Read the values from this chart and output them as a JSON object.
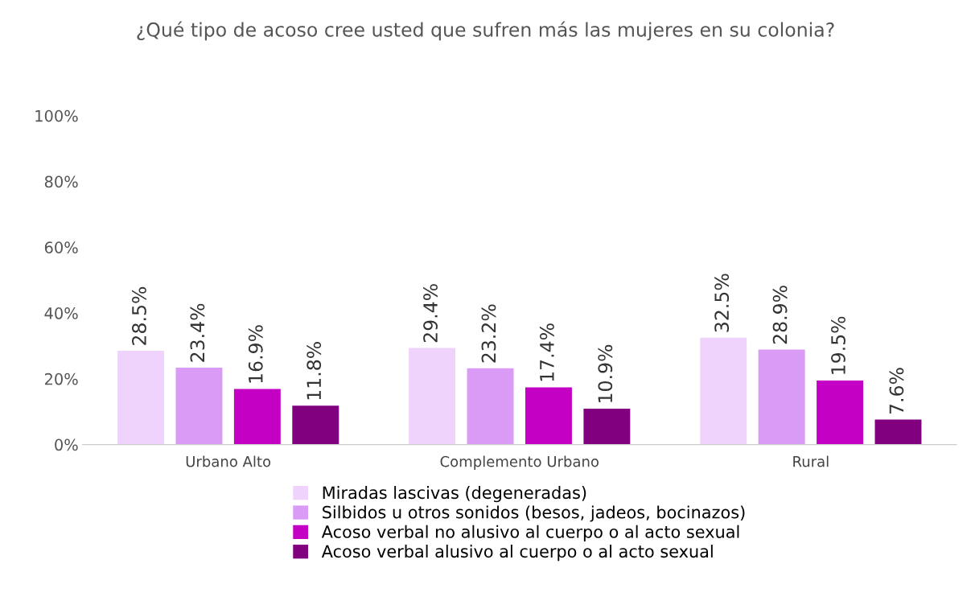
{
  "chart_data": {
    "type": "bar",
    "title": "¿Qué tipo de acoso cree usted que sufren más las mujeres en su colonia?",
    "categories": [
      "Urbano Alto",
      "Complemento Urbano",
      "Rural"
    ],
    "series": [
      {
        "name": "Miradas lascivas (degeneradas)",
        "color": "#f0d3fc",
        "values": [
          28.5,
          29.4,
          32.5
        ],
        "value_labels": [
          "28.5%",
          "29.4%",
          "32.5%"
        ]
      },
      {
        "name": "Silbidos u otros sonidos (besos, jadeos, bocinazos)",
        "color": "#da9bf7",
        "values": [
          23.4,
          23.2,
          28.9
        ],
        "value_labels": [
          "23.4%",
          "23.2%",
          "28.9%"
        ]
      },
      {
        "name": "Acoso verbal no alusivo al cuerpo o al acto sexual",
        "color": "#c400c4",
        "values": [
          16.9,
          17.4,
          19.5
        ],
        "value_labels": [
          "16.9%",
          "17.4%",
          "19.5%"
        ]
      },
      {
        "name": "Acoso verbal alusivo al cuerpo o al acto sexual",
        "color": "#800080",
        "values": [
          11.8,
          10.9,
          7.6
        ],
        "value_labels": [
          "11.8%",
          "10.9%",
          "7.6%"
        ]
      }
    ],
    "ylim": [
      0,
      100
    ],
    "yticks": [
      {
        "value": 0,
        "label": "0%"
      },
      {
        "value": 20,
        "label": "20%"
      },
      {
        "value": 40,
        "label": "40%"
      },
      {
        "value": 60,
        "label": "60%"
      },
      {
        "value": 80,
        "label": "80%"
      },
      {
        "value": 100,
        "label": "100%"
      }
    ],
    "grid": false,
    "legend": "bottom"
  }
}
